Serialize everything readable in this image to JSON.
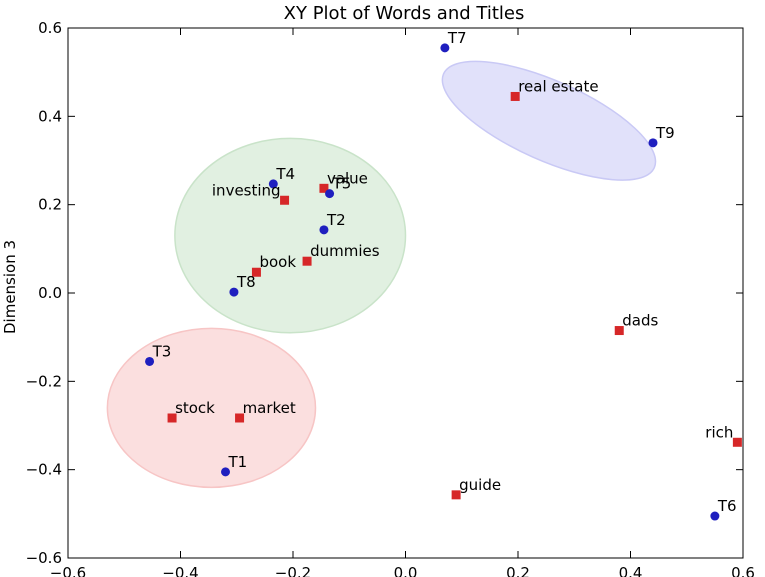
{
  "chart_data": {
    "type": "scatter",
    "title": "XY Plot of Words and Titles",
    "xlabel": "",
    "ylabel": "Dimension 3",
    "xlim": [
      -0.6,
      0.6
    ],
    "ylim": [
      -0.6,
      0.6
    ],
    "xticks": [
      -0.6,
      -0.4,
      -0.2,
      0.0,
      0.2,
      0.4,
      0.6
    ],
    "yticks": [
      -0.6,
      -0.4,
      -0.2,
      0.0,
      0.2,
      0.4,
      0.6
    ],
    "xtick_labels": [
      "−0.6",
      "−0.4",
      "−0.2",
      "0.0",
      "0.2",
      "0.4",
      "0.6"
    ],
    "ytick_labels": [
      "−0.6",
      "−0.4",
      "−0.2",
      "0.0",
      "0.2",
      "0.4",
      "0.6"
    ],
    "grid": false,
    "colors": {
      "words": "#d62728",
      "titles": "#1f1fbf",
      "cluster_1": "#f7c5c5",
      "cluster_2": "#c9e3c9",
      "cluster_3": "#c9c9f5"
    },
    "series": [
      {
        "marker": "square",
        "color": "#d62728",
        "points": [
          {
            "label": "real estate",
            "x": 0.195,
            "y": 0.445
          },
          {
            "label": "value",
            "x": -0.145,
            "y": 0.237
          },
          {
            "label": "investing",
            "x": -0.215,
            "y": 0.21
          },
          {
            "label": "dummies",
            "x": -0.175,
            "y": 0.072
          },
          {
            "label": "book",
            "x": -0.265,
            "y": 0.047
          },
          {
            "label": "dads",
            "x": 0.38,
            "y": -0.085
          },
          {
            "label": "stock",
            "x": -0.415,
            "y": -0.283
          },
          {
            "label": "market",
            "x": -0.295,
            "y": -0.283
          },
          {
            "label": "rich",
            "x": 0.59,
            "y": -0.338
          },
          {
            "label": "guide",
            "x": 0.09,
            "y": -0.457
          }
        ]
      },
      {
        "marker": "circle",
        "color": "#1f1fbf",
        "points": [
          {
            "label": "T7",
            "x": 0.07,
            "y": 0.555
          },
          {
            "label": "T9",
            "x": 0.44,
            "y": 0.34
          },
          {
            "label": "T4",
            "x": -0.235,
            "y": 0.247
          },
          {
            "label": "T5",
            "x": -0.135,
            "y": 0.225
          },
          {
            "label": "T2",
            "x": -0.145,
            "y": 0.143
          },
          {
            "label": "T8",
            "x": -0.305,
            "y": 0.002
          },
          {
            "label": "T3",
            "x": -0.455,
            "y": -0.155
          },
          {
            "label": "T1",
            "x": -0.32,
            "y": -0.405
          },
          {
            "label": "T6",
            "x": 0.55,
            "y": -0.505
          }
        ]
      }
    ],
    "annotations": [
      {
        "shape": "ellipse",
        "cx": -0.345,
        "cy": -0.26,
        "rx": 0.185,
        "ry": 0.18,
        "rotation": 0,
        "color": "#f7c5c5"
      },
      {
        "shape": "ellipse",
        "cx": -0.205,
        "cy": 0.13,
        "rx": 0.205,
        "ry": 0.22,
        "rotation": 0,
        "color": "#c9e3c9"
      },
      {
        "shape": "ellipse",
        "cx": 0.255,
        "cy": 0.39,
        "rx": 0.205,
        "ry": 0.09,
        "rotation": 24,
        "color": "#c9c9f5"
      }
    ]
  }
}
